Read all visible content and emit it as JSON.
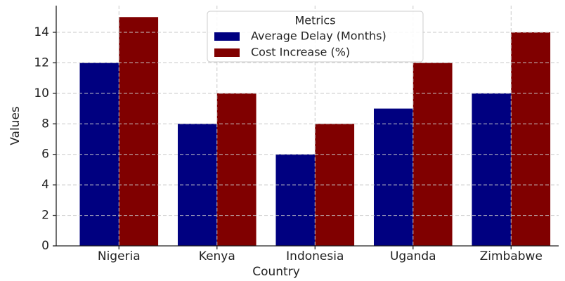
{
  "chart_data": {
    "type": "bar",
    "xlabel": "Country",
    "ylabel": "Values",
    "categories": [
      "Nigeria",
      "Kenya",
      "Indonesia",
      "Uganda",
      "Zimbabwe"
    ],
    "series": [
      {
        "name": "Average Delay (Months)",
        "color": "#000080",
        "values": [
          12,
          8,
          6,
          9,
          10
        ]
      },
      {
        "name": "Cost Increase (%)",
        "color": "#800000",
        "values": [
          15,
          10,
          8,
          12,
          14
        ]
      }
    ],
    "legend_title": "Metrics",
    "legend": "upper center",
    "ylim": [
      0,
      15.75
    ],
    "yticks": [
      0,
      2,
      4,
      6,
      8,
      10,
      12,
      14
    ],
    "grid": true
  }
}
